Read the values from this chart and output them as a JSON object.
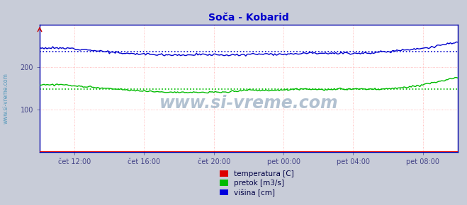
{
  "title": "Soča - Kobarid",
  "fig_bg_color": "#c8ccd8",
  "plot_bg_color": "#ffffff",
  "grid_color": "#ffaaaa",
  "title_color": "#0000cc",
  "ylim": [
    0,
    300
  ],
  "yticks": [
    100,
    200
  ],
  "xlim": [
    0,
    288
  ],
  "xtick_positions": [
    24,
    72,
    120,
    168,
    216,
    264
  ],
  "xtick_labels": [
    "čet 12:00",
    "čet 16:00",
    "čet 20:00",
    "pet 00:00",
    "pet 04:00",
    "pet 08:00"
  ],
  "legend_labels": [
    "temperatura [C]",
    "pretok [m3/s]",
    "višina [cm]"
  ],
  "legend_colors": [
    "#dd0000",
    "#00bb00",
    "#0000dd"
  ],
  "watermark": "www.si-vreme.com",
  "side_label": "www.si-vreme.com",
  "visina_mean": 236,
  "pretok_mean": 148,
  "tick_color": "#444488",
  "spine_color": "#0000aa"
}
